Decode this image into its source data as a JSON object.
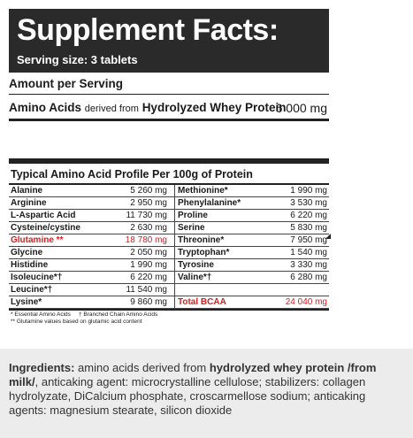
{
  "header": {
    "title": "Supplement Facts:",
    "serving_size": "Serving size: 3 tablets"
  },
  "amount_per_serving": "Amount per Serving",
  "amino_line": {
    "name_bold": "Amino Acids",
    "name_mid": "derived from",
    "name_bold2": "Hydrolyzed Whey Protein",
    "value": "6 000 mg"
  },
  "profile": {
    "title": "Typical Amino Acid Profile Per 100g of Protein",
    "rows": [
      {
        "n1": "Alanine",
        "v1": "5 260 mg",
        "n2": "Methionine*",
        "v2": "1 990 mg"
      },
      {
        "n1": "Arginine",
        "v1": "2 950 mg",
        "n2": "Phenylalanine*",
        "v2": "3 530 mg"
      },
      {
        "n1": "L-Aspartic Acid",
        "v1": "11 730 mg",
        "n2": "Proline",
        "v2": "6 220 mg"
      },
      {
        "n1": "Cysteine/cystine",
        "v1": "2 630 mg",
        "n2": "Serine",
        "v2": "5 830 mg"
      },
      {
        "n1": "Glutamine **",
        "v1": "18 780 mg",
        "n2": "Threonine*",
        "v2": "7 950 mg"
      },
      {
        "n1": "Glycine",
        "v1": "2 050 mg",
        "n2": "Tryptophan*",
        "v2": "1 540 mg"
      },
      {
        "n1": "Histidine",
        "v1": "1 990 mg",
        "n2": "Tyrosine",
        "v2": "3 330 mg"
      },
      {
        "n1": "Isoleucine*†",
        "v1": "6 220 mg",
        "n2": "Valine*†",
        "v2": "6 280 mg"
      },
      {
        "n1": "Leucine*†",
        "v1": "11 540 mg",
        "n2": "",
        "v2": ""
      },
      {
        "n1": "Lysine*",
        "v1": "9 860 mg",
        "n2": "Total BCAA",
        "v2": "24 040 mg"
      }
    ],
    "footnote1": "* Essential Amino Acids     † Branched Chain Amino Acids",
    "footnote2": "** Glutamine values based on glutamic acid content"
  },
  "ingredients": {
    "label": "Ingredients:",
    "text1": " amino acids derived from ",
    "bold1": "hydrolyzed whey protein /from milk/",
    "text2": ", anticaking agent: microcrystalline cellulose; stabilizers: collagen hydrolyzate, DiCalcium phosphate, croscarmellose sodium; anticaking agents: magnesium stearate, silicon dioxide"
  },
  "colors": {
    "header_bg": "#2a2a2a",
    "highlight": "#d42020",
    "ingredients_bg": "#ececec"
  }
}
